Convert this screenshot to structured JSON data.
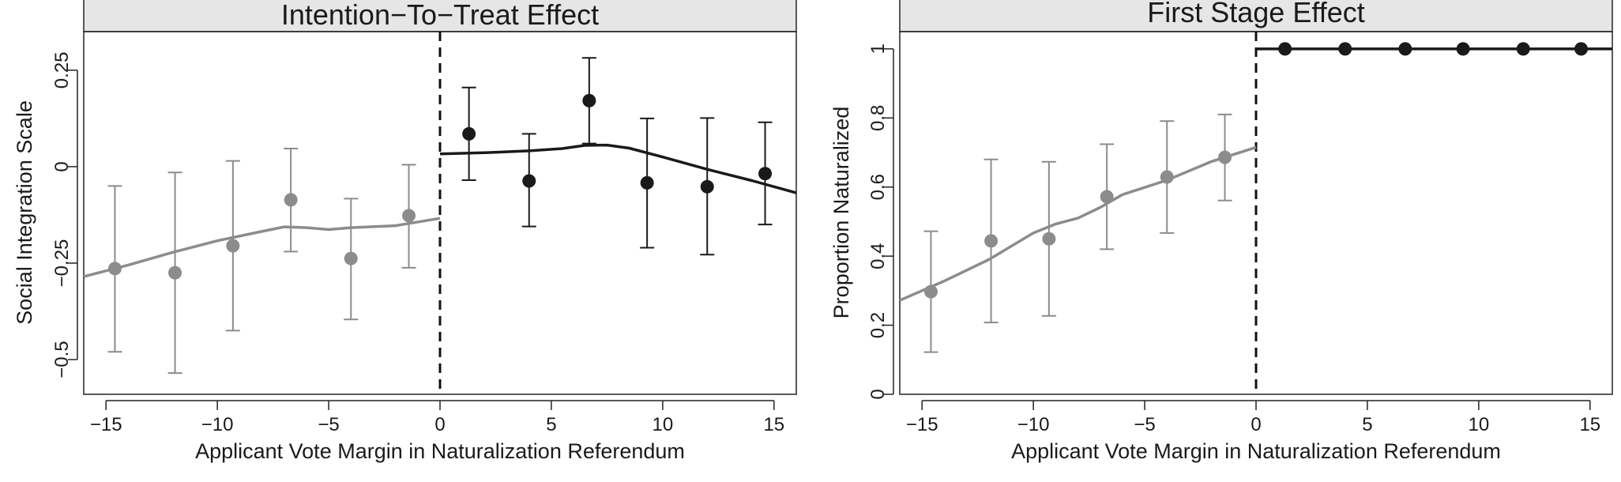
{
  "chart_data": [
    {
      "type": "scatter",
      "title": "Intention−To−Treat Effect",
      "xlabel": "Applicant Vote Margin in Naturalization Referendum",
      "ylabel": "Social Integration Scale",
      "xlim": [
        -16,
        16
      ],
      "ylim": [
        -0.59,
        0.35
      ],
      "xticks": [
        -15,
        -10,
        -5,
        0,
        5,
        10,
        15
      ],
      "xtick_labels": [
        "−15",
        "−10",
        "−5",
        "0",
        "5",
        "10",
        "15"
      ],
      "yticks": [
        -0.5,
        -0.25,
        0,
        0.25
      ],
      "ytick_labels": [
        "−0.5",
        "−0.25",
        "0",
        "0.25"
      ],
      "cutoff": 0,
      "series": [
        {
          "color": "#8c8c8c",
          "points": [
            {
              "x": -14.6,
              "y": -0.264,
              "lo": -0.48,
              "hi": -0.05
            },
            {
              "x": -11.9,
              "y": -0.275,
              "lo": -0.535,
              "hi": -0.015
            },
            {
              "x": -9.3,
              "y": -0.205,
              "lo": -0.425,
              "hi": 0.015
            },
            {
              "x": -6.7,
              "y": -0.086,
              "lo": -0.22,
              "hi": 0.047
            },
            {
              "x": -4.0,
              "y": -0.238,
              "lo": -0.396,
              "hi": -0.083
            },
            {
              "x": -1.4,
              "y": -0.127,
              "lo": -0.262,
              "hi": 0.005
            }
          ],
          "fit": [
            [
              -16,
              -0.285
            ],
            [
              -14,
              -0.255
            ],
            [
              -12,
              -0.222
            ],
            [
              -10,
              -0.192
            ],
            [
              -8,
              -0.168
            ],
            [
              -7,
              -0.156
            ],
            [
              -6,
              -0.158
            ],
            [
              -5,
              -0.163
            ],
            [
              -4,
              -0.158
            ],
            [
              -2,
              -0.153
            ],
            [
              0,
              -0.134
            ]
          ]
        },
        {
          "color": "#1a1a1a",
          "points": [
            {
              "x": 1.3,
              "y": 0.085,
              "lo": -0.035,
              "hi": 0.205
            },
            {
              "x": 4.0,
              "y": -0.037,
              "lo": -0.155,
              "hi": 0.085
            },
            {
              "x": 6.7,
              "y": 0.171,
              "lo": 0.06,
              "hi": 0.282
            },
            {
              "x": 9.3,
              "y": -0.042,
              "lo": -0.21,
              "hi": 0.125
            },
            {
              "x": 12.0,
              "y": -0.052,
              "lo": -0.228,
              "hi": 0.126
            },
            {
              "x": 14.6,
              "y": -0.018,
              "lo": -0.15,
              "hi": 0.115
            }
          ],
          "fit": [
            [
              0,
              0.033
            ],
            [
              2,
              0.036
            ],
            [
              4,
              0.041
            ],
            [
              5.5,
              0.047
            ],
            [
              6.5,
              0.055
            ],
            [
              7.5,
              0.056
            ],
            [
              8.5,
              0.048
            ],
            [
              10,
              0.025
            ],
            [
              12,
              -0.007
            ],
            [
              14,
              -0.036
            ],
            [
              16,
              -0.068
            ]
          ]
        }
      ]
    },
    {
      "type": "scatter",
      "title": "First Stage Effect",
      "xlabel": "Applicant Vote Margin in Naturalization Referendum",
      "ylabel": "Proportion Naturalized",
      "xlim": [
        -16,
        16
      ],
      "ylim": [
        0,
        1.05
      ],
      "xticks": [
        -15,
        -10,
        -5,
        0,
        5,
        10,
        15
      ],
      "xtick_labels": [
        "−15",
        "−10",
        "−5",
        "0",
        "5",
        "10",
        "15"
      ],
      "yticks": [
        0,
        0.2,
        0.4,
        0.6,
        0.8,
        1
      ],
      "ytick_labels": [
        "0",
        "0.2",
        "0.4",
        "0.6",
        "0.8",
        "1"
      ],
      "cutoff": 0,
      "series": [
        {
          "color": "#8c8c8c",
          "points": [
            {
              "x": -14.6,
              "y": 0.297,
              "lo": 0.122,
              "hi": 0.472
            },
            {
              "x": -11.9,
              "y": 0.444,
              "lo": 0.208,
              "hi": 0.68
            },
            {
              "x": -9.3,
              "y": 0.45,
              "lo": 0.227,
              "hi": 0.673
            },
            {
              "x": -6.7,
              "y": 0.572,
              "lo": 0.42,
              "hi": 0.724
            },
            {
              "x": -4.0,
              "y": 0.629,
              "lo": 0.467,
              "hi": 0.791
            },
            {
              "x": -1.4,
              "y": 0.686,
              "lo": 0.561,
              "hi": 0.81
            }
          ],
          "fit": [
            [
              -16,
              0.272
            ],
            [
              -14,
              0.328
            ],
            [
              -12,
              0.39
            ],
            [
              -10,
              0.467
            ],
            [
              -9,
              0.493
            ],
            [
              -8,
              0.51
            ],
            [
              -7,
              0.541
            ],
            [
              -6,
              0.578
            ],
            [
              -4,
              0.62
            ],
            [
              -2,
              0.674
            ],
            [
              0,
              0.715
            ]
          ]
        },
        {
          "color": "#1a1a1a",
          "points": [
            {
              "x": 1.3,
              "y": 1
            },
            {
              "x": 4.0,
              "y": 1
            },
            {
              "x": 6.7,
              "y": 1
            },
            {
              "x": 9.3,
              "y": 1
            },
            {
              "x": 12.0,
              "y": 1
            },
            {
              "x": 14.6,
              "y": 1
            }
          ],
          "fit": [
            [
              0,
              1
            ],
            [
              16,
              1
            ]
          ]
        }
      ]
    }
  ]
}
